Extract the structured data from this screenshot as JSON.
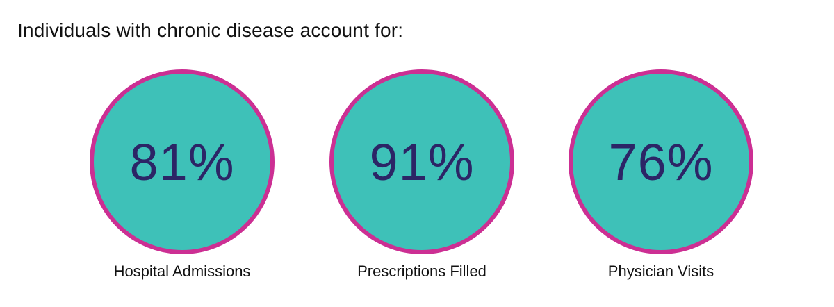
{
  "title": "Individuals with chronic disease account for:",
  "colors": {
    "circle_fill": "#3ec1b8",
    "circle_border": "#cc2f93",
    "value_text": "#2c2566"
  },
  "stats": [
    {
      "value": "81%",
      "label": "Hospital Admissions"
    },
    {
      "value": "91%",
      "label": "Prescriptions Filled"
    },
    {
      "value": "76%",
      "label": "Physician Visits"
    }
  ]
}
